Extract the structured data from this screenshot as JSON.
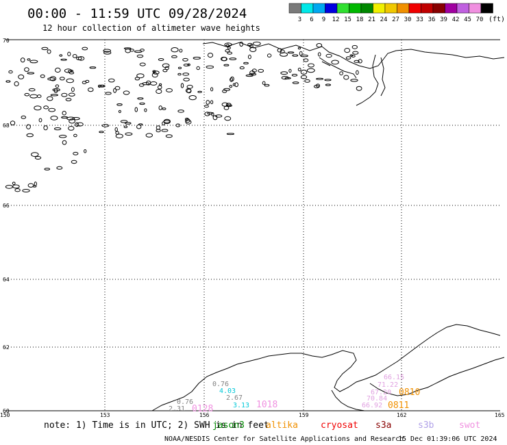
{
  "header": {
    "title": "00:00 - 11:59 UTC 09/28/2024",
    "subtitle": "12 hour collection of altimeter wave heights"
  },
  "legend": {
    "unit": "(ft)",
    "bins": [
      {
        "label": "3",
        "color": "#7a7a7a"
      },
      {
        "label": "6",
        "color": "#00e8e8"
      },
      {
        "label": "9",
        "color": "#00a8f0"
      },
      {
        "label": "12",
        "color": "#0000e0"
      },
      {
        "label": "15",
        "color": "#30e030"
      },
      {
        "label": "18",
        "color": "#00b800"
      },
      {
        "label": "21",
        "color": "#008800"
      },
      {
        "label": "24",
        "color": "#f0f000"
      },
      {
        "label": "27",
        "color": "#f0c800"
      },
      {
        "label": "30",
        "color": "#f09000"
      },
      {
        "label": "33",
        "color": "#f00000"
      },
      {
        "label": "36",
        "color": "#c00000"
      },
      {
        "label": "39",
        "color": "#880000"
      },
      {
        "label": "42",
        "color": "#a000a0"
      },
      {
        "label": "45",
        "color": "#c060e0"
      },
      {
        "label": "70",
        "color": "#f090e0"
      },
      {
        "label": "",
        "color": "#000000"
      }
    ]
  },
  "axes": {
    "lat_labels": [
      "70",
      "68",
      "66",
      "64",
      "62",
      "60"
    ],
    "lon_labels": [
      "150",
      "153",
      "156",
      "159",
      "162",
      "165"
    ]
  },
  "observations": [
    {
      "text": "0.76",
      "color": "#808080",
      "cls": "num"
    },
    {
      "text": "2.31",
      "color": "#808080",
      "cls": "num"
    },
    {
      "text": "0128",
      "color": "#f090e0",
      "cls": "time"
    },
    {
      "text": "0.76",
      "color": "#808080",
      "cls": "num"
    },
    {
      "text": "4.03",
      "color": "#00c8d8",
      "cls": "num"
    },
    {
      "text": "2.67",
      "color": "#808080",
      "cls": "num"
    },
    {
      "text": "3.13",
      "color": "#00c8d8",
      "cls": "num"
    },
    {
      "text": "1018",
      "color": "#f090e0",
      "cls": "time"
    },
    {
      "text": "66.15",
      "color": "#e0a0e0",
      "cls": "num"
    },
    {
      "text": "71.22",
      "color": "#e0a0e0",
      "cls": "num"
    },
    {
      "text": "67.20",
      "color": "#e0a0e0",
      "cls": "num"
    },
    {
      "text": "70.84",
      "color": "#e0a0e0",
      "cls": "num"
    },
    {
      "text": "66.92",
      "color": "#e0a0e0",
      "cls": "num"
    },
    {
      "text": "0810",
      "color": "#f09000",
      "cls": "time"
    },
    {
      "text": "0811",
      "color": "#f09000",
      "cls": "time"
    }
  ],
  "footer": {
    "note_prefix": "note: 1) Time is in UTC; 2) SWH is in feet",
    "satellites": [
      {
        "name": "jason3",
        "color": "#008800"
      },
      {
        "name": "altika",
        "color": "#f09000"
      },
      {
        "name": "cryosat",
        "color": "#f00000"
      },
      {
        "name": "s3a",
        "color": "#880000"
      },
      {
        "name": "s3b",
        "color": "#b0a0e8"
      },
      {
        "name": "swot",
        "color": "#f090e0"
      }
    ],
    "credit": "NOAA/NESDIS Center for Satellite Applications and Research",
    "generated": "15 Dec 01:39:06 UTC 2024"
  }
}
